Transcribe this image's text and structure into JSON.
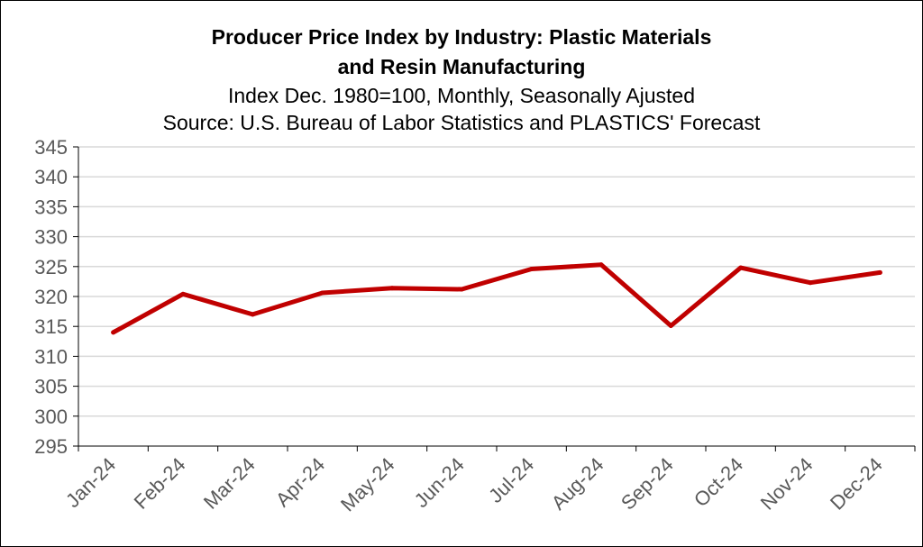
{
  "chart_data": {
    "type": "line",
    "title_line1": "Producer Price Index by Industry: Plastic Materials",
    "title_line2": "and Resin Manufacturing",
    "subtitle_line1": "Index Dec. 1980=100, Monthly, Seasonally Ajusted",
    "subtitle_line2": "Source: U.S. Bureau of Labor Statistics and PLASTICS' Forecast",
    "xlabel": "",
    "ylabel": "",
    "categories": [
      "Jan-24",
      "Feb-24",
      "Mar-24",
      "Apr-24",
      "May-24",
      "Jun-24",
      "Jul-24",
      "Aug-24",
      "Sep-24",
      "Oct-24",
      "Nov-24",
      "Dec-24"
    ],
    "series": [
      {
        "values": [
          314.0,
          320.4,
          317.0,
          320.6,
          321.4,
          321.2,
          324.6,
          325.3,
          315.1,
          324.8,
          322.3,
          324.0
        ],
        "color": "#C00000"
      }
    ],
    "ylim": [
      295,
      345
    ],
    "yticks": [
      295,
      300,
      305,
      310,
      315,
      320,
      325,
      330,
      335,
      340,
      345
    ],
    "grid": true,
    "legend": "none",
    "gridline_color": "#D9D9D9",
    "axis_color": "#000000"
  }
}
